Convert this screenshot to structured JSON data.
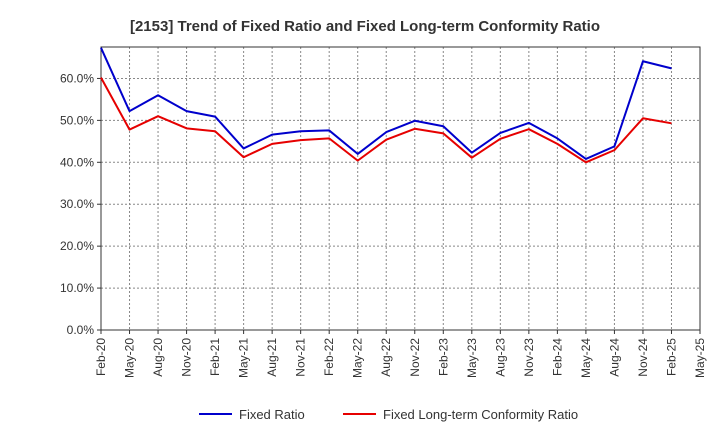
{
  "chart_data": {
    "type": "line",
    "title": "[2153]  Trend of Fixed Ratio and Fixed Long-term Conformity Ratio",
    "xlabel": "",
    "ylabel": "",
    "categories": [
      "Feb-20",
      "May-20",
      "Aug-20",
      "Nov-20",
      "Feb-21",
      "May-21",
      "Aug-21",
      "Nov-21",
      "Feb-22",
      "May-22",
      "Aug-22",
      "Nov-22",
      "Feb-23",
      "May-23",
      "Aug-23",
      "Nov-23",
      "Feb-24",
      "May-24",
      "Aug-24",
      "Nov-24",
      "Feb-25",
      "May-25"
    ],
    "ylim": [
      0,
      67.5
    ],
    "yticks": [
      0,
      10,
      20,
      30,
      40,
      50,
      60
    ],
    "ytick_labels": [
      "0.0%",
      "10.0%",
      "20.0%",
      "30.0%",
      "40.0%",
      "50.0%",
      "60.0%"
    ],
    "grid": true,
    "legend_position": "bottom",
    "series": [
      {
        "name": "Fixed Ratio",
        "color": "#0000cc",
        "values": [
          67.3,
          52.2,
          56.0,
          52.2,
          50.9,
          43.3,
          46.6,
          47.4,
          47.6,
          42.0,
          47.2,
          49.9,
          48.6,
          42.3,
          47.0,
          49.4,
          45.7,
          40.8,
          43.8,
          64.1,
          62.4,
          null
        ]
      },
      {
        "name": "Fixed Long-term Conformity Ratio",
        "color": "#e60000",
        "values": [
          60.2,
          47.8,
          51.0,
          48.1,
          47.4,
          41.2,
          44.4,
          45.3,
          45.7,
          40.4,
          45.4,
          48.0,
          46.9,
          41.1,
          45.6,
          47.9,
          44.4,
          40.0,
          42.9,
          50.5,
          49.3,
          null
        ]
      }
    ]
  }
}
